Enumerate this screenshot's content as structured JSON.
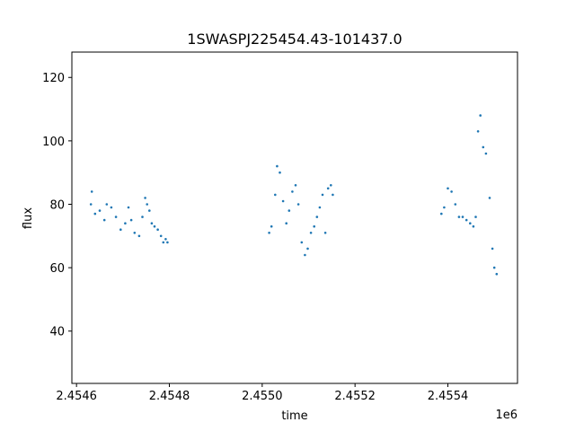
{
  "chart_data": {
    "type": "scatter",
    "title": "1SWASPJ225454.43-101437.0",
    "xlabel": "time",
    "ylabel": "flux",
    "offset_label": "1e6",
    "xlim": [
      2454590,
      2455550
    ],
    "ylim": [
      23.5,
      128
    ],
    "grid": false,
    "marker_color": "#1f77b4",
    "x_ticks": [
      {
        "value": 2454600,
        "label": "2.4546"
      },
      {
        "value": 2454800,
        "label": "2.4548"
      },
      {
        "value": 2455000,
        "label": "2.4550"
      },
      {
        "value": 2455200,
        "label": "2.4552"
      },
      {
        "value": 2455400,
        "label": "2.4554"
      }
    ],
    "y_ticks": [
      {
        "value": 40,
        "label": "40"
      },
      {
        "value": 60,
        "label": "60"
      },
      {
        "value": 80,
        "label": "80"
      },
      {
        "value": 100,
        "label": "100"
      },
      {
        "value": 120,
        "label": "120"
      }
    ],
    "series": [
      {
        "x": [
          2454631,
          2454633,
          2454640,
          2454650,
          2454660,
          2454665,
          2454675,
          2454685,
          2454695,
          2454705,
          2454712,
          2454718,
          2454725,
          2454735,
          2454742,
          2454748,
          2454752,
          2454757,
          2454762,
          2454768,
          2454775,
          2454782,
          2454787,
          2454792,
          2454796,
          2455015,
          2455020,
          2455028,
          2455032,
          2455038,
          2455045,
          2455052,
          2455058,
          2455065,
          2455072,
          2455078,
          2455085,
          2455092,
          2455098,
          2455105,
          2455112,
          2455118,
          2455124,
          2455130,
          2455136,
          2455142,
          2455148,
          2455152,
          2455386,
          2455392,
          2455400,
          2455408,
          2455416,
          2455424,
          2455432,
          2455440,
          2455448,
          2455455,
          2455460,
          2455465,
          2455470,
          2455476,
          2455482,
          2455490,
          2455496,
          2455500,
          2455505
        ],
        "y": [
          80,
          84,
          77,
          78,
          75,
          80,
          79,
          76,
          72,
          74,
          79,
          75,
          71,
          70,
          76,
          82,
          80,
          78,
          74,
          73,
          72,
          70,
          68,
          69,
          68,
          71,
          73,
          83,
          92,
          90,
          81,
          74,
          78,
          84,
          86,
          80,
          68,
          64,
          66,
          71,
          73,
          76,
          79,
          83,
          71,
          85,
          86,
          83,
          77,
          79,
          85,
          84,
          80,
          76,
          76,
          75,
          74,
          73,
          76,
          103,
          108,
          98,
          96,
          82,
          66,
          60,
          58
        ]
      }
    ]
  }
}
